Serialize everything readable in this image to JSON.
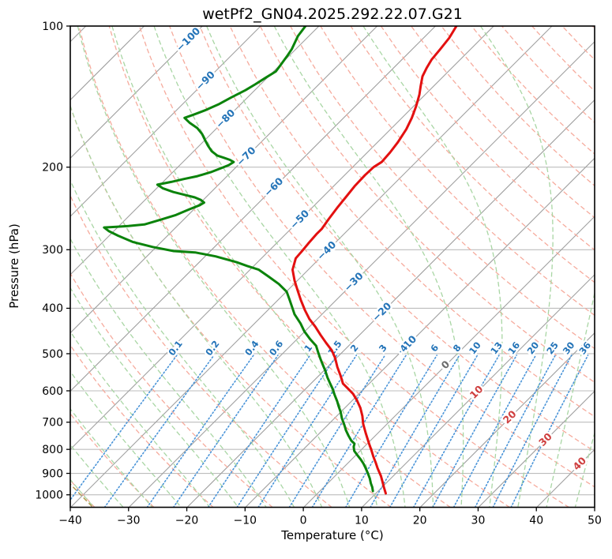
{
  "title": "wetPf2_GN04.2025.292.22.07.G21",
  "axes": {
    "xlabel": "Temperature (°C)",
    "ylabel": "Pressure (hPa)",
    "xticks": [
      {
        "value": -40,
        "label": "−40"
      },
      {
        "value": -30,
        "label": "−30"
      },
      {
        "value": -20,
        "label": "−20"
      },
      {
        "value": -10,
        "label": "−10"
      },
      {
        "value": 0,
        "label": "0"
      },
      {
        "value": 10,
        "label": "10"
      },
      {
        "value": 20,
        "label": "20"
      },
      {
        "value": 30,
        "label": "30"
      },
      {
        "value": 40,
        "label": "40"
      },
      {
        "value": 50,
        "label": "50"
      }
    ],
    "yticks": [
      {
        "value": 100,
        "label": "100"
      },
      {
        "value": 200,
        "label": "200"
      },
      {
        "value": 300,
        "label": "300"
      },
      {
        "value": 400,
        "label": "400"
      },
      {
        "value": 500,
        "label": "500"
      },
      {
        "value": 600,
        "label": "600"
      },
      {
        "value": 700,
        "label": "700"
      },
      {
        "value": 800,
        "label": "800"
      },
      {
        "value": 900,
        "label": "900"
      },
      {
        "value": 1000,
        "label": "1000"
      }
    ],
    "x_range": [
      -40,
      50
    ],
    "p_range": [
      100,
      1065
    ]
  },
  "chart_data": {
    "type": "line",
    "projection": "skew-t-log-p",
    "skew_deg": 45,
    "grid": "on",
    "colors": {
      "grid": "#bdbdbd",
      "isotherm": "#a0a0a0",
      "dry_adiabat": "#f6ab9d",
      "moist_adiabat": "#a9d6a4",
      "mixing_line": "#4a94d8",
      "mixing_label": "#2474b8",
      "isotherm_label_neg": "#2474b8",
      "isotherm_label_zero": "#6b6b6b",
      "isotherm_label_pos": "#cf3f3f",
      "temperature": "#e31010",
      "dewpoint": "#0b830b",
      "tan_segment": "#b59a52"
    },
    "isotherms": {
      "start": -130,
      "end": 50,
      "step": 10
    },
    "isotherm_labels": [
      {
        "t": -100,
        "p": 107,
        "label": "−100",
        "tone": "neg"
      },
      {
        "t": -90,
        "p": 131,
        "label": "−90",
        "tone": "neg"
      },
      {
        "t": -80,
        "p": 158,
        "label": "−80",
        "tone": "neg"
      },
      {
        "t": -70,
        "p": 190,
        "label": "−70",
        "tone": "neg"
      },
      {
        "t": -60,
        "p": 221,
        "label": "−60",
        "tone": "neg"
      },
      {
        "t": -50,
        "p": 259,
        "label": "−50",
        "tone": "neg"
      },
      {
        "t": -40,
        "p": 302,
        "label": "−40",
        "tone": "neg"
      },
      {
        "t": -30,
        "p": 352,
        "label": "−30",
        "tone": "neg"
      },
      {
        "t": -20,
        "p": 408,
        "label": "−20",
        "tone": "neg"
      },
      {
        "t": -10,
        "p": 480,
        "label": "−10",
        "tone": "neg"
      },
      {
        "t": 0,
        "p": 529,
        "label": "0",
        "tone": "zero"
      },
      {
        "t": 10,
        "p": 605,
        "label": "10",
        "tone": "pos"
      },
      {
        "t": 20,
        "p": 684,
        "label": "20",
        "tone": "pos"
      },
      {
        "t": 30,
        "p": 764,
        "label": "30",
        "tone": "pos"
      },
      {
        "t": 40,
        "p": 860,
        "label": "40",
        "tone": "pos"
      }
    ],
    "dry_adiabats": {
      "start": -40,
      "end": 200,
      "step": 10
    },
    "moist_adiabats": {
      "start": -40,
      "end": 45,
      "step": 5
    },
    "mixing_ratios": {
      "values": [
        0.1,
        0.2,
        0.4,
        0.6,
        1,
        1.5,
        2,
        3,
        4,
        6,
        8,
        10,
        13,
        16,
        20,
        25,
        30,
        36
      ],
      "labels": [
        "0.1",
        "0.2",
        "0.4",
        "0.6",
        "1",
        "1.5",
        "2",
        "3",
        "4",
        "6",
        "8",
        "10",
        "13",
        "16",
        "20",
        "25",
        "30",
        "36"
      ],
      "top_p": 502,
      "label_p": 487
    },
    "extra_segments": [
      {
        "name": "tan-dashed-segment",
        "points": [
          [
            937,
            -44.9
          ],
          [
            1090,
            -34.5
          ]
        ]
      }
    ],
    "series": [
      {
        "name": "temperature",
        "units": {
          "p": "hPa",
          "t": "degC"
        },
        "points": [
          [
            993,
            11.7
          ],
          [
            963,
            10.3
          ],
          [
            937,
            9.1
          ],
          [
            912,
            7.9
          ],
          [
            878,
            6.0
          ],
          [
            854,
            4.7
          ],
          [
            828,
            3.2
          ],
          [
            803,
            1.8
          ],
          [
            778,
            0.3
          ],
          [
            740,
            -2.0
          ],
          [
            706,
            -4.1
          ],
          [
            679,
            -5.6
          ],
          [
            653,
            -7.3
          ],
          [
            629,
            -9.2
          ],
          [
            609,
            -11.0
          ],
          [
            595,
            -12.6
          ],
          [
            579,
            -14.5
          ],
          [
            559,
            -16.1
          ],
          [
            534,
            -18.3
          ],
          [
            510,
            -20.3
          ],
          [
            492,
            -22.1
          ],
          [
            474,
            -24.4
          ],
          [
            456,
            -26.7
          ],
          [
            438,
            -29.0
          ],
          [
            422,
            -31.3
          ],
          [
            404,
            -33.6
          ],
          [
            384,
            -36.1
          ],
          [
            367,
            -38.2
          ],
          [
            349,
            -40.5
          ],
          [
            331,
            -42.7
          ],
          [
            313,
            -44.1
          ],
          [
            301,
            -44.3
          ],
          [
            291,
            -44.5
          ],
          [
            278,
            -44.7
          ],
          [
            271,
            -44.7
          ],
          [
            258,
            -45.2
          ],
          [
            243,
            -45.7
          ],
          [
            232,
            -46.0
          ],
          [
            219,
            -46.4
          ],
          [
            208,
            -46.5
          ],
          [
            200,
            -46.4
          ],
          [
            195,
            -45.9
          ],
          [
            186,
            -46.1
          ],
          [
            177,
            -46.5
          ],
          [
            166,
            -47.3
          ],
          [
            157,
            -48.3
          ],
          [
            148,
            -49.6
          ],
          [
            140,
            -51.0
          ],
          [
            134,
            -52.3
          ],
          [
            128,
            -53.6
          ],
          [
            123,
            -54.3
          ],
          [
            118,
            -54.9
          ],
          [
            112,
            -55.2
          ],
          [
            106,
            -55.6
          ],
          [
            100,
            -56.4
          ]
        ]
      },
      {
        "name": "dewpoint",
        "units": {
          "p": "hPa",
          "t": "degC"
        },
        "points": [
          [
            982,
            9.1
          ],
          [
            963,
            8.3
          ],
          [
            945,
            7.4
          ],
          [
            923,
            6.4
          ],
          [
            902,
            5.3
          ],
          [
            877,
            3.9
          ],
          [
            857,
            2.7
          ],
          [
            841,
            1.6
          ],
          [
            825,
            0.4
          ],
          [
            806,
            -1.0
          ],
          [
            790,
            -1.8
          ],
          [
            778,
            -2.2
          ],
          [
            766,
            -3.3
          ],
          [
            748,
            -4.6
          ],
          [
            728,
            -6.0
          ],
          [
            709,
            -7.2
          ],
          [
            687,
            -8.7
          ],
          [
            666,
            -10.0
          ],
          [
            648,
            -11.3
          ],
          [
            631,
            -12.5
          ],
          [
            612,
            -14.0
          ],
          [
            595,
            -15.3
          ],
          [
            579,
            -16.7
          ],
          [
            562,
            -18.2
          ],
          [
            544,
            -19.7
          ],
          [
            530,
            -21.0
          ],
          [
            514,
            -22.5
          ],
          [
            498,
            -24.0
          ],
          [
            481,
            -25.6
          ],
          [
            466,
            -27.7
          ],
          [
            448,
            -30.1
          ],
          [
            431,
            -32.1
          ],
          [
            412,
            -34.7
          ],
          [
            399,
            -36.2
          ],
          [
            384,
            -38.0
          ],
          [
            369,
            -39.9
          ],
          [
            355,
            -42.6
          ],
          [
            342,
            -45.7
          ],
          [
            331,
            -48.5
          ],
          [
            325,
            -51.1
          ],
          [
            319,
            -53.6
          ],
          [
            310,
            -58.2
          ],
          [
            304,
            -62.4
          ],
          [
            302,
            -66.3
          ],
          [
            296,
            -70.6
          ],
          [
            289,
            -74.8
          ],
          [
            280,
            -78.5
          ],
          [
            274,
            -80.8
          ],
          [
            269,
            -82.3
          ],
          [
            268,
            -80.3
          ],
          [
            267,
            -78.4
          ],
          [
            265,
            -75.9
          ],
          [
            259,
            -74.0
          ],
          [
            253,
            -72.1
          ],
          [
            246,
            -70.8
          ],
          [
            241,
            -69.7
          ],
          [
            238,
            -69.4
          ],
          [
            235,
            -70.4
          ],
          [
            232,
            -71.9
          ],
          [
            229,
            -74.2
          ],
          [
            226,
            -76.5
          ],
          [
            222,
            -78.9
          ],
          [
            218,
            -80.5
          ],
          [
            215,
            -78.6
          ],
          [
            212,
            -76.9
          ],
          [
            209,
            -75.1
          ],
          [
            205,
            -73.5
          ],
          [
            201,
            -72.4
          ],
          [
            198,
            -71.6
          ],
          [
            195,
            -71.3
          ],
          [
            193,
            -72.3
          ],
          [
            191,
            -73.7
          ],
          [
            189,
            -75.2
          ],
          [
            185,
            -76.9
          ],
          [
            180,
            -78.5
          ],
          [
            175,
            -80.0
          ],
          [
            170,
            -81.5
          ],
          [
            165,
            -83.4
          ],
          [
            161,
            -85.5
          ],
          [
            157,
            -87.3
          ],
          [
            154,
            -86.1
          ],
          [
            151,
            -85.0
          ],
          [
            147,
            -83.8
          ],
          [
            142,
            -82.8
          ],
          [
            137,
            -81.6
          ],
          [
            133,
            -80.9
          ],
          [
            129,
            -80.3
          ],
          [
            125,
            -79.6
          ],
          [
            121,
            -79.9
          ],
          [
            116,
            -80.3
          ],
          [
            112,
            -80.7
          ],
          [
            105,
            -81.9
          ],
          [
            100,
            -82.3
          ]
        ]
      }
    ]
  }
}
